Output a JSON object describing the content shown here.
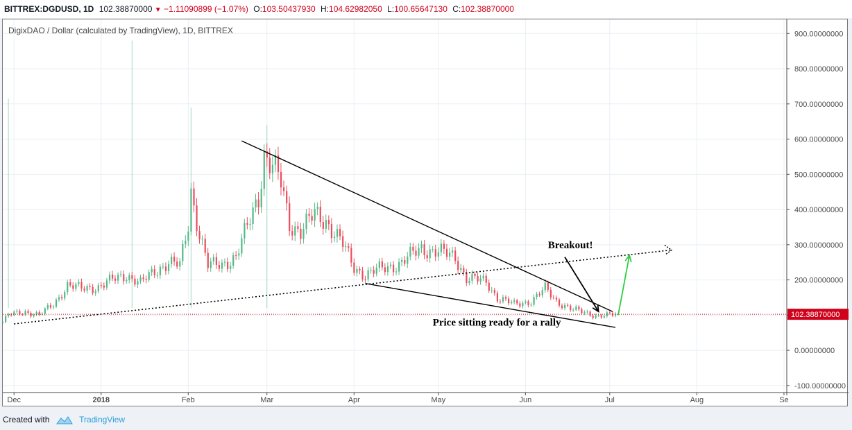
{
  "header": {
    "symbol": "BITTREX:DGDUSD, 1D",
    "last": "102.38870000",
    "change": "−1.11090899 (−1.07%)",
    "open_label": "O:",
    "open": "103.50437930",
    "high_label": "H:",
    "high": "104.62982050",
    "low_label": "L:",
    "low": "100.65647130",
    "close_label": "C:",
    "close": "102.38870000"
  },
  "footer": {
    "created_with": "Created with",
    "brand": "TradingView"
  },
  "colors": {
    "up": "#53b987",
    "down": "#eb4d5c",
    "price_line": "#d0021b",
    "grid": "#e9eef3",
    "annotation_arrow": "#2ecc40"
  },
  "chart_data": {
    "type": "candlestick",
    "title": "DigixDAO / Dollar (calculated by TradingView), 1D, BITTREX",
    "ylim": [
      -120,
      940
    ],
    "y_ticks": [
      900,
      800,
      700,
      600,
      500,
      400,
      300,
      200,
      100,
      0,
      -100
    ],
    "y_tick_labels": [
      "900.00000000",
      "800.00000000",
      "700.00000000",
      "600.00000000",
      "500.00000000",
      "400.00000000",
      "300.00000000",
      "200.00000000",
      "100.00000000",
      "0.00000000",
      "-100.00000000"
    ],
    "x_tick_labels": [
      "Dec",
      "2018",
      "Feb",
      "Mar",
      "Apr",
      "May",
      "Jun",
      "Jul",
      "Aug",
      "Se"
    ],
    "x_tick_dates": [
      "2017-12-01",
      "2018-01-01",
      "2018-02-01",
      "2018-03-01",
      "2018-04-01",
      "2018-05-01",
      "2018-06-01",
      "2018-07-01",
      "2018-08-01",
      "2018-09-01"
    ],
    "x_range": [
      "2017-11-27",
      "2018-09-02"
    ],
    "current_price": 102.3887,
    "current_price_label": "102.38870000",
    "price_path": [
      [
        "2017-11-27",
        80
      ],
      [
        "2017-11-29",
        100
      ],
      [
        "2017-12-05",
        110
      ],
      [
        "2017-12-10",
        100
      ],
      [
        "2017-12-15",
        130
      ],
      [
        "2017-12-20",
        185
      ],
      [
        "2017-12-25",
        175
      ],
      [
        "2017-12-31",
        180
      ],
      [
        "2018-01-05",
        200
      ],
      [
        "2018-01-10",
        215
      ],
      [
        "2018-01-15",
        190
      ],
      [
        "2018-01-20",
        225
      ],
      [
        "2018-01-25",
        250
      ],
      [
        "2018-01-29",
        240
      ],
      [
        "2018-02-01",
        360
      ],
      [
        "2018-02-02",
        455
      ],
      [
        "2018-02-05",
        330
      ],
      [
        "2018-02-08",
        240
      ],
      [
        "2018-02-13",
        245
      ],
      [
        "2018-02-18",
        265
      ],
      [
        "2018-02-22",
        350
      ],
      [
        "2018-02-26",
        440
      ],
      [
        "2018-02-28",
        555
      ],
      [
        "2018-03-03",
        520
      ],
      [
        "2018-03-06",
        475
      ],
      [
        "2018-03-09",
        360
      ],
      [
        "2018-03-13",
        340
      ],
      [
        "2018-03-18",
        385
      ],
      [
        "2018-03-22",
        370
      ],
      [
        "2018-03-28",
        300
      ],
      [
        "2018-04-01",
        235
      ],
      [
        "2018-04-05",
        215
      ],
      [
        "2018-04-10",
        230
      ],
      [
        "2018-04-17",
        245
      ],
      [
        "2018-04-25",
        290
      ],
      [
        "2018-05-01",
        280
      ],
      [
        "2018-05-07",
        265
      ],
      [
        "2018-05-11",
        205
      ],
      [
        "2018-05-18",
        195
      ],
      [
        "2018-05-22",
        150
      ],
      [
        "2018-05-28",
        130
      ],
      [
        "2018-06-03",
        140
      ],
      [
        "2018-06-08",
        175
      ],
      [
        "2018-06-12",
        140
      ],
      [
        "2018-06-18",
        115
      ],
      [
        "2018-06-23",
        105
      ],
      [
        "2018-06-27",
        98
      ],
      [
        "2018-07-01",
        100
      ],
      [
        "2018-07-03",
        102
      ]
    ],
    "volume_spikes": [
      [
        "2017-11-29",
        715
      ],
      [
        "2018-01-12",
        880
      ],
      [
        "2018-02-02",
        690
      ],
      [
        "2018-03-01",
        640
      ]
    ],
    "trendlines": [
      {
        "style": "solid",
        "points": [
          [
            "2018-02-20",
            595
          ],
          [
            "2018-07-02",
            110
          ]
        ]
      },
      {
        "style": "solid",
        "points": [
          [
            "2018-04-05",
            190
          ],
          [
            "2018-07-03",
            65
          ]
        ]
      },
      {
        "style": "dotted",
        "points": [
          [
            "2017-12-01",
            75
          ],
          [
            "2018-07-23",
            285
          ]
        ]
      }
    ],
    "arrows": [
      {
        "color": "#000000",
        "from": [
          "2018-06-15",
          265
        ],
        "to": [
          "2018-06-27",
          110
        ]
      },
      {
        "color": "#2ecc40",
        "from": [
          "2018-07-04",
          100
        ],
        "to": [
          "2018-07-08",
          270
        ]
      }
    ],
    "annotations": [
      {
        "text": "Breakout!",
        "at": [
          "2018-06-09",
          290
        ]
      },
      {
        "text": "Price sitting ready for a rally",
        "at": [
          "2018-04-29",
          70
        ]
      }
    ]
  }
}
